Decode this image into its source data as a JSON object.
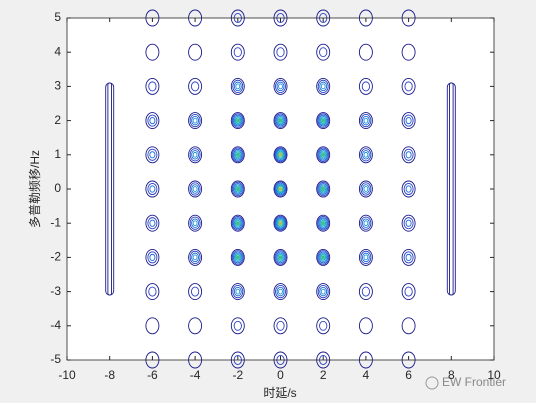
{
  "chart_data": {
    "type": "contour",
    "xlabel": "时延/s",
    "ylabel": "多普勒频移/Hz",
    "x": [
      -6,
      -4,
      -2,
      0,
      2,
      4,
      6
    ],
    "y": [
      -5,
      -4,
      -3,
      -2,
      -1,
      0,
      1,
      2,
      3,
      4,
      5
    ],
    "z": [
      [
        0.12,
        0.18,
        0.27,
        0.3,
        0.27,
        0.18,
        0.12
      ],
      [
        0.14,
        0.21,
        0.32,
        0.35,
        0.32,
        0.21,
        0.14
      ],
      [
        0.22,
        0.33,
        0.5,
        0.55,
        0.5,
        0.33,
        0.22
      ],
      [
        0.36,
        0.54,
        0.81,
        0.9,
        0.81,
        0.54,
        0.36
      ],
      [
        0.4,
        0.6,
        0.9,
        1,
        0.9,
        0.6,
        0.4
      ],
      [
        0.4,
        0.6,
        0.9,
        1,
        0.9,
        0.6,
        0.4
      ],
      [
        0.4,
        0.6,
        0.9,
        1,
        0.9,
        0.6,
        0.4
      ],
      [
        0.36,
        0.54,
        0.81,
        0.9,
        0.81,
        0.54,
        0.36
      ],
      [
        0.22,
        0.33,
        0.5,
        0.55,
        0.5,
        0.33,
        0.22
      ],
      [
        0.14,
        0.21,
        0.32,
        0.35,
        0.32,
        0.21,
        0.14
      ],
      [
        0.12,
        0.18,
        0.27,
        0.3,
        0.27,
        0.18,
        0.12
      ]
    ],
    "ridges": [
      {
        "x": -8,
        "y": [
          -3.1,
          3.1
        ]
      },
      {
        "x": 8,
        "y": [
          -3.1,
          3.1
        ]
      }
    ],
    "xlim": [
      -10,
      10
    ],
    "ylim": [
      -5,
      5
    ],
    "xticks": [
      -10,
      -8,
      -6,
      -4,
      -2,
      0,
      2,
      4,
      6,
      8,
      10
    ],
    "yticks": [
      -5,
      -4,
      -3,
      -2,
      -1,
      0,
      1,
      2,
      3,
      4,
      5
    ],
    "watermark": "EW Frontier"
  }
}
